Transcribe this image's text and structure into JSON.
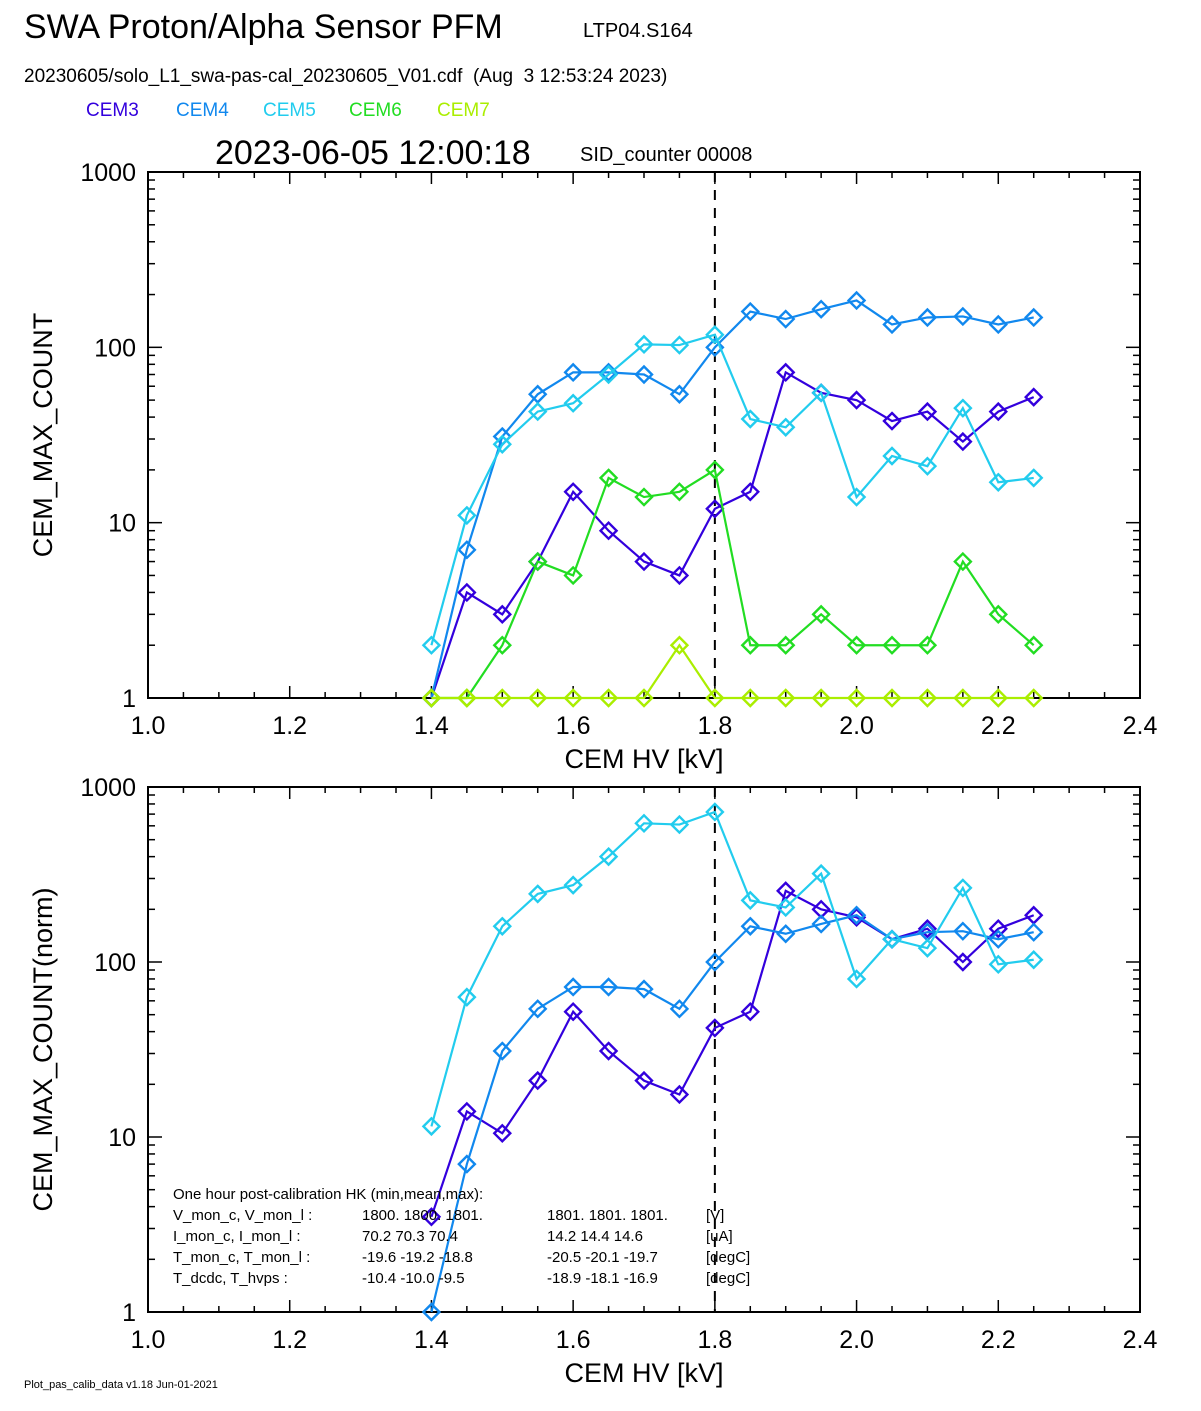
{
  "header": {
    "title": "SWA Proton/Alpha Sensor PFM",
    "instrument_id": "LTP04.S164",
    "file_line": "20230605/solo_L1_swa-pas-cal_20230605_V01.cdf  (Aug  3 12:53:24 2023)",
    "timestamp": "2023-06-05 12:00:18",
    "sid_counter": "SID_counter 00008"
  },
  "legend": [
    {
      "name": "CEM3",
      "color": "#3300dd"
    },
    {
      "name": "CEM4",
      "color": "#1188ee"
    },
    {
      "name": "CEM5",
      "color": "#22ccee"
    },
    {
      "name": "CEM6",
      "color": "#22dd22"
    },
    {
      "name": "CEM7",
      "color": "#aaee00"
    }
  ],
  "footer": "Plot_pas_calib_data v1.18 Jun-01-2021",
  "hk_box": {
    "title": "One hour post-calibration HK (min,mean,max):",
    "rows": [
      {
        "label": "V_mon_c, V_mon_l :",
        "a": "1800.  1800.  1801.",
        "b": "1801.  1801.  1801.",
        "unit": "[V]"
      },
      {
        "label": "I_mon_c,  I_mon_l :",
        "a": "70.2   70.3   70.4",
        "b": "14.2   14.4   14.6",
        "unit": "[uA]"
      },
      {
        "label": "T_mon_c, T_mon_l :",
        "a": "-19.6  -19.2  -18.8",
        "b": "-20.5  -20.1  -19.7",
        "unit": "[degC]"
      },
      {
        "label": "T_dcdc,    T_hvps :",
        "a": "-10.4  -10.0   -9.5",
        "b": "-18.9  -18.1  -16.9",
        "unit": "[degC]"
      }
    ]
  },
  "chart_data": [
    {
      "type": "line",
      "xlabel": "CEM HV [kV]",
      "ylabel": "CEM_MAX_COUNT",
      "xlim": [
        1.0,
        2.4
      ],
      "ylim": [
        1,
        1000
      ],
      "yscale": "log",
      "xticks": [
        "1.0",
        "1.2",
        "1.4",
        "1.6",
        "1.8",
        "2.0",
        "2.2",
        "2.4"
      ],
      "yticks": [
        "1",
        "10",
        "100",
        "1000"
      ],
      "vline_x": 1.8,
      "x": [
        1.4,
        1.45,
        1.5,
        1.55,
        1.6,
        1.65,
        1.7,
        1.75,
        1.8,
        1.85,
        1.9,
        1.95,
        2.0,
        2.05,
        2.1,
        2.15,
        2.2,
        2.25
      ],
      "series": [
        {
          "name": "CEM3",
          "color": "#3300dd",
          "values": [
            1,
            4,
            3,
            6,
            15,
            9,
            6,
            5,
            12,
            15,
            72,
            55,
            50,
            38,
            43,
            29,
            43,
            52
          ]
        },
        {
          "name": "CEM4",
          "color": "#1188ee",
          "values": [
            1,
            7,
            31,
            54,
            72,
            72,
            70,
            54,
            100,
            160,
            145,
            165,
            185,
            135,
            148,
            150,
            135,
            148
          ]
        },
        {
          "name": "CEM5",
          "color": "#22ccee",
          "values": [
            2,
            11,
            28,
            43,
            48,
            70,
            104,
            103,
            118,
            39,
            35,
            55,
            14,
            24,
            21,
            45,
            17,
            18
          ]
        },
        {
          "name": "CEM6",
          "color": "#22dd22",
          "values": [
            1,
            1,
            2,
            6,
            5,
            18,
            14,
            15,
            20,
            2,
            2,
            3,
            2,
            2,
            2,
            6,
            3,
            2
          ]
        },
        {
          "name": "CEM7",
          "color": "#aaee00",
          "values": [
            1,
            1,
            1,
            1,
            1,
            1,
            1,
            2,
            1,
            1,
            1,
            1,
            1,
            1,
            1,
            1,
            1,
            1
          ]
        }
      ]
    },
    {
      "type": "line",
      "xlabel": "CEM HV [kV]",
      "ylabel": "CEM_MAX_COUNT(norm)",
      "xlim": [
        1.0,
        2.4
      ],
      "ylim": [
        1,
        1000
      ],
      "yscale": "log",
      "xticks": [
        "1.0",
        "1.2",
        "1.4",
        "1.6",
        "1.8",
        "2.0",
        "2.2",
        "2.4"
      ],
      "yticks": [
        "1",
        "10",
        "100",
        "1000"
      ],
      "vline_x": 1.8,
      "x": [
        1.4,
        1.45,
        1.5,
        1.55,
        1.6,
        1.65,
        1.7,
        1.75,
        1.8,
        1.85,
        1.9,
        1.95,
        2.0,
        2.05,
        2.1,
        2.15,
        2.2,
        2.25
      ],
      "series": [
        {
          "name": "CEM3",
          "color": "#3300dd",
          "values": [
            3.5,
            14,
            10.5,
            21,
            52,
            31,
            21,
            17.5,
            42,
            52,
            255,
            200,
            180,
            135,
            155,
            100,
            155,
            185
          ]
        },
        {
          "name": "CEM4",
          "color": "#1188ee",
          "values": [
            1,
            7,
            31,
            54,
            72,
            72,
            70,
            54,
            100,
            160,
            145,
            165,
            185,
            135,
            148,
            150,
            135,
            148
          ]
        },
        {
          "name": "CEM5",
          "color": "#22ccee",
          "values": [
            11.5,
            63,
            160,
            245,
            275,
            400,
            620,
            610,
            720,
            225,
            205,
            320,
            80,
            135,
            120,
            265,
            97,
            103
          ]
        }
      ]
    }
  ]
}
